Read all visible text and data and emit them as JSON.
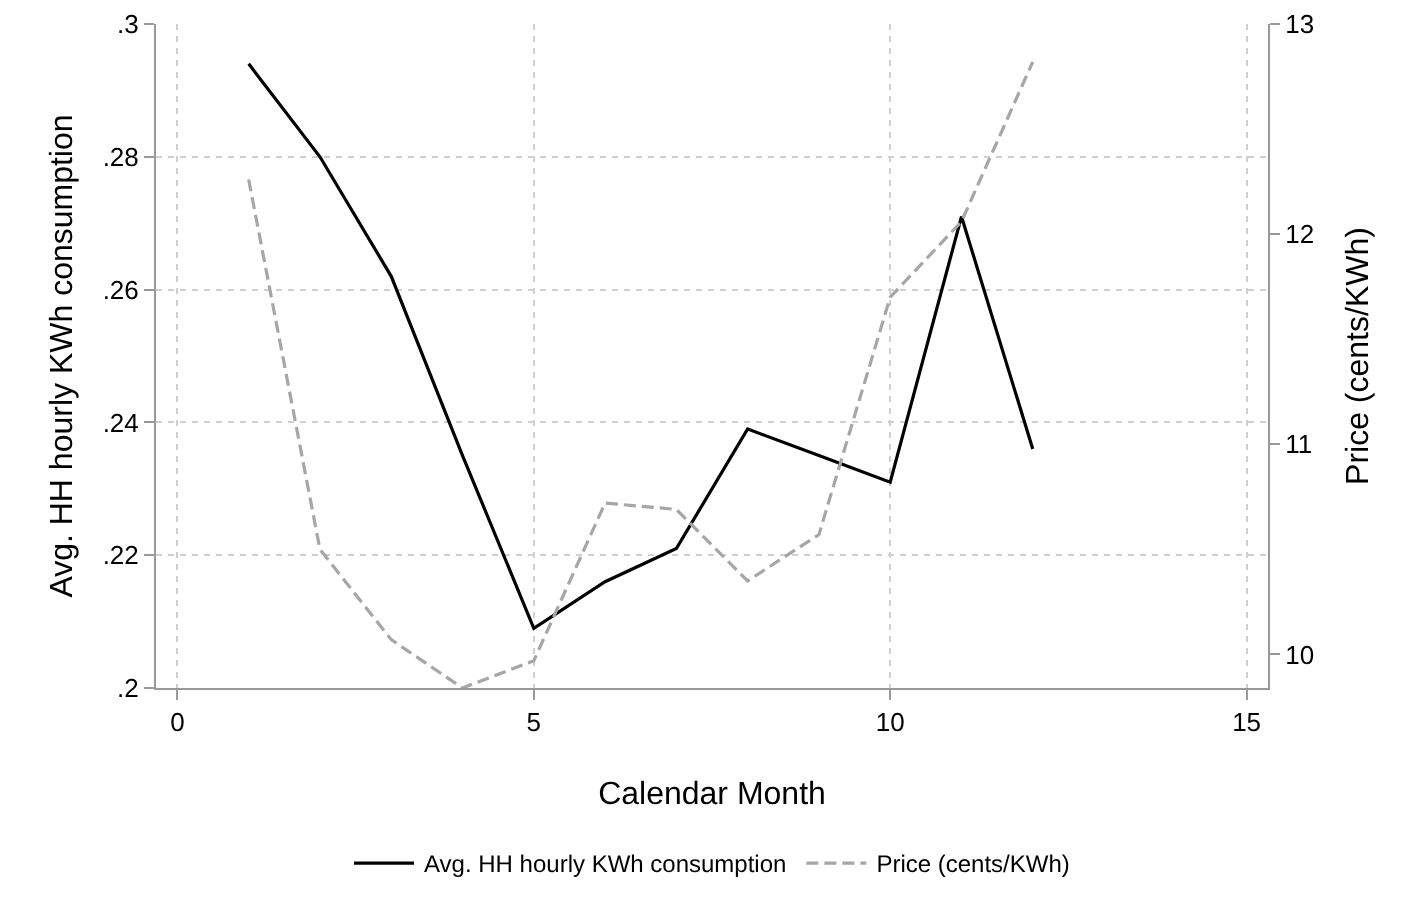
{
  "chart_data": {
    "type": "line",
    "xlabel": "Calendar Month",
    "ylabel": "Avg. HH hourly KWh consumption",
    "y2label": "Price (cents/KWh)",
    "x": [
      1,
      2,
      3,
      4,
      5,
      6,
      7,
      8,
      9,
      10,
      11,
      12
    ],
    "series": [
      {
        "name": "Avg. HH hourly KWh consumption",
        "color": "#000000",
        "line_style": "solid",
        "values": [
          0.294,
          0.28,
          0.262,
          0.235,
          0.209,
          0.216,
          0.221,
          0.239,
          0.235,
          0.231,
          0.271,
          0.236
        ]
      },
      {
        "name": "Price (cents/KWh)",
        "color": "#a6a6a6",
        "line_style": "dashed",
        "axis": "y2",
        "values": [
          12.26,
          10.5,
          10.07,
          9.84,
          9.97,
          10.72,
          10.69,
          10.35,
          10.57,
          11.7,
          12.06,
          12.82
        ]
      }
    ],
    "xlim": [
      -0.3,
      15.3
    ],
    "xticks": [
      0,
      5,
      10,
      15
    ],
    "ylim": [
      0.2,
      0.3
    ],
    "yticks": [
      {
        "value": 0.2,
        "label": ".2"
      },
      {
        "value": 0.22,
        "label": ".22"
      },
      {
        "value": 0.24,
        "label": ".24"
      },
      {
        "value": 0.26,
        "label": ".26"
      },
      {
        "value": 0.28,
        "label": ".28"
      },
      {
        "value": 0.3,
        "label": ".3"
      }
    ],
    "y2lim": [
      9.84,
      13
    ],
    "y2ticks": [
      10,
      11,
      12,
      13
    ],
    "grid": true,
    "legend": "bottom",
    "marker": "none"
  }
}
